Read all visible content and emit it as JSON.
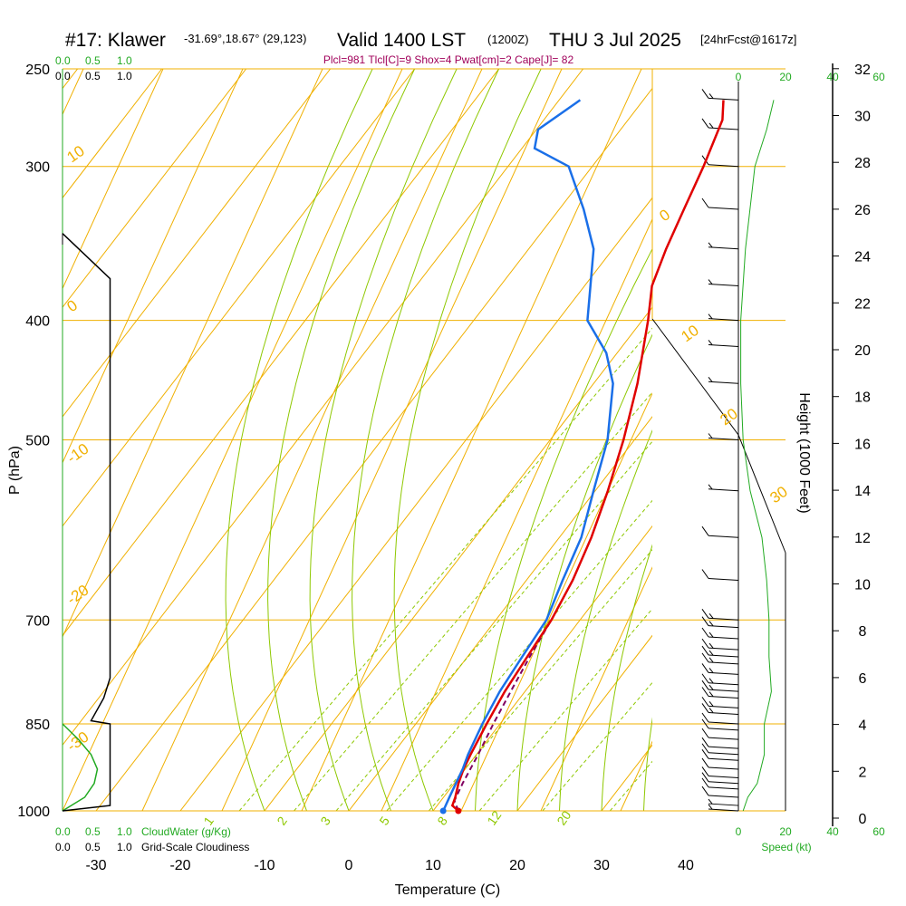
{
  "header": {
    "title_station": "#17: Klawer",
    "title_coords": "-31.69°,18.67° (29,123)",
    "title_valid": "Valid 1400 LST",
    "title_utc": "(1200Z)",
    "title_date": "THU 3 Jul 2025",
    "title_fcst": "[24hrFcst@1617z]",
    "stats_line": "Plcl=981 Tlcl[C]=9 Shox=4 Pwat[cm]=2 Cape[J]= 82"
  },
  "labels": {
    "left_axis": "P (hPa)",
    "right_axis": "Height (1000 Feet)",
    "bottom_axis": "Temperature (C)",
    "cloudwater": "CloudWater (g/Kg)",
    "cloudiness": "Grid-Scale Cloudiness",
    "speed": "Speed (kt)"
  },
  "scale_labels": {
    "top_green": [
      "0.0",
      "0.5",
      "1.0"
    ],
    "top_black": [
      "0.0",
      "0.5",
      "1.0"
    ],
    "bottom_green": [
      "0.0",
      "0.5",
      "1.0"
    ],
    "bottom_black": [
      "0.0",
      "0.5",
      "1.0"
    ],
    "speed_top": [
      "0",
      "20",
      "40",
      "60"
    ],
    "speed_bottom": [
      "0",
      "20",
      "40",
      "60"
    ]
  },
  "colors": {
    "isobar": "#f0b000",
    "isotherm": "#f0b000",
    "dry_adiabat": "#8ec800",
    "mixing_ratio": "#8ec800",
    "temperature": "#e00000",
    "dewpoint": "#1a6fe8",
    "parcel": "#800060",
    "cloudwater": "#22aa22",
    "cloudiness": "#000000",
    "wind_speed": "#22aa22"
  },
  "chart_data": {
    "type": "line",
    "x_axis": {
      "label": "Temperature (C)",
      "ticks": [
        -30,
        -20,
        -10,
        0,
        10,
        20,
        30,
        40
      ],
      "range": [
        -34,
        37
      ]
    },
    "y_axis": {
      "label": "P (hPa)",
      "scale": "log",
      "ticks": [
        250,
        300,
        400,
        500,
        700,
        850,
        1000
      ],
      "range": [
        1000,
        250
      ]
    },
    "height_axis": {
      "label": "Height (1000 Feet)",
      "ticks": [
        0,
        2,
        4,
        6,
        8,
        10,
        12,
        14,
        16,
        18,
        20,
        22,
        24,
        26,
        28,
        30,
        32
      ]
    },
    "isotherm_labels": [
      10,
      0,
      -10,
      -20,
      -30,
      0,
      10,
      20,
      30
    ],
    "mixing_ratio_labels": [
      "1",
      "2",
      "3",
      "5",
      "8",
      "12",
      "20"
    ],
    "series": [
      {
        "name": "Temperature",
        "unit": "C",
        "points": [
          {
            "p": 1000,
            "t": 13.0
          },
          {
            "p": 990,
            "t": 11.8
          },
          {
            "p": 975,
            "t": 11.4
          },
          {
            "p": 950,
            "t": 10.5
          },
          {
            "p": 925,
            "t": 9.8
          },
          {
            "p": 900,
            "t": 9.3
          },
          {
            "p": 850,
            "t": 8.4
          },
          {
            "p": 800,
            "t": 7.6
          },
          {
            "p": 750,
            "t": 7.1
          },
          {
            "p": 700,
            "t": 6.6
          },
          {
            "p": 650,
            "t": 5.5
          },
          {
            "p": 600,
            "t": 3.8
          },
          {
            "p": 550,
            "t": 1.5
          },
          {
            "p": 500,
            "t": -1.3
          },
          {
            "p": 450,
            "t": -4.8
          },
          {
            "p": 400,
            "t": -9.3
          },
          {
            "p": 375,
            "t": -12.0
          },
          {
            "p": 350,
            "t": -13.7
          },
          {
            "p": 325,
            "t": -15.2
          },
          {
            "p": 300,
            "t": -16.8
          },
          {
            "p": 275,
            "t": -18.8
          },
          {
            "p": 265,
            "t": -20.5
          }
        ]
      },
      {
        "name": "Dewpoint",
        "unit": "C",
        "points": [
          {
            "p": 1000,
            "t": 11.2
          },
          {
            "p": 990,
            "t": 11.0
          },
          {
            "p": 975,
            "t": 10.7
          },
          {
            "p": 950,
            "t": 10.2
          },
          {
            "p": 925,
            "t": 9.7
          },
          {
            "p": 900,
            "t": 9.0
          },
          {
            "p": 850,
            "t": 7.9
          },
          {
            "p": 800,
            "t": 7.0
          },
          {
            "p": 750,
            "t": 6.5
          },
          {
            "p": 700,
            "t": 6.0
          },
          {
            "p": 650,
            "t": 4.3
          },
          {
            "p": 600,
            "t": 2.6
          },
          {
            "p": 550,
            "t": -0.2
          },
          {
            "p": 500,
            "t": -3.2
          },
          {
            "p": 450,
            "t": -7.7
          },
          {
            "p": 425,
            "t": -11.3
          },
          {
            "p": 400,
            "t": -16.5
          },
          {
            "p": 375,
            "t": -19.3
          },
          {
            "p": 350,
            "t": -22.3
          },
          {
            "p": 325,
            "t": -27.1
          },
          {
            "p": 300,
            "t": -32.8
          },
          {
            "p": 290,
            "t": -38.5
          },
          {
            "p": 280,
            "t": -39.8
          },
          {
            "p": 265,
            "t": -37.5
          }
        ]
      },
      {
        "name": "Parcel",
        "unit": "C",
        "points": [
          {
            "p": 1000,
            "t": 13.0
          },
          {
            "p": 981,
            "t": 11.6
          },
          {
            "p": 950,
            "t": 11.0
          },
          {
            "p": 900,
            "t": 10.2
          },
          {
            "p": 850,
            "t": 9.2
          },
          {
            "p": 800,
            "t": 8.3
          },
          {
            "p": 750,
            "t": 7.4
          },
          {
            "p": 700,
            "t": 6.6
          }
        ]
      }
    ],
    "cloudwater_profile": [
      {
        "p": 1000,
        "v": 0.0
      },
      {
        "p": 975,
        "v": 0.35
      },
      {
        "p": 950,
        "v": 0.5
      },
      {
        "p": 925,
        "v": 0.55
      },
      {
        "p": 900,
        "v": 0.45
      },
      {
        "p": 875,
        "v": 0.25
      },
      {
        "p": 850,
        "v": 0.0
      }
    ],
    "cloudiness_profile": [
      {
        "p": 1000,
        "v": 0.0
      },
      {
        "p": 990,
        "v": 0.75
      },
      {
        "p": 975,
        "v": 0.75
      },
      {
        "p": 850,
        "v": 0.75
      },
      {
        "p": 845,
        "v": 0.45
      },
      {
        "p": 810,
        "v": 0.65
      },
      {
        "p": 780,
        "v": 0.75
      },
      {
        "p": 370,
        "v": 0.75
      },
      {
        "p": 340,
        "v": 0.0
      }
    ],
    "wind_speed_profile": [
      {
        "p": 1000,
        "kt": 2
      },
      {
        "p": 975,
        "kt": 4
      },
      {
        "p": 950,
        "kt": 8
      },
      {
        "p": 900,
        "kt": 11
      },
      {
        "p": 850,
        "kt": 11
      },
      {
        "p": 800,
        "kt": 14
      },
      {
        "p": 750,
        "kt": 13
      },
      {
        "p": 700,
        "kt": 13
      },
      {
        "p": 650,
        "kt": 12
      },
      {
        "p": 600,
        "kt": 10
      },
      {
        "p": 550,
        "kt": 5
      },
      {
        "p": 500,
        "kt": 2
      },
      {
        "p": 450,
        "kt": 1
      },
      {
        "p": 400,
        "kt": 1
      },
      {
        "p": 350,
        "kt": 3
      },
      {
        "p": 300,
        "kt": 7
      },
      {
        "p": 280,
        "kt": 12
      },
      {
        "p": 265,
        "kt": 15
      }
    ],
    "wind_barbs": [
      {
        "p": 1000,
        "kt": 5
      },
      {
        "p": 990,
        "kt": 5
      },
      {
        "p": 975,
        "kt": 10
      },
      {
        "p": 960,
        "kt": 10
      },
      {
        "p": 950,
        "kt": 10
      },
      {
        "p": 940,
        "kt": 10
      },
      {
        "p": 925,
        "kt": 10
      },
      {
        "p": 910,
        "kt": 10
      },
      {
        "p": 900,
        "kt": 10
      },
      {
        "p": 890,
        "kt": 10
      },
      {
        "p": 875,
        "kt": 10
      },
      {
        "p": 860,
        "kt": 10
      },
      {
        "p": 850,
        "kt": 10
      },
      {
        "p": 835,
        "kt": 15
      },
      {
        "p": 825,
        "kt": 15
      },
      {
        "p": 810,
        "kt": 15
      },
      {
        "p": 800,
        "kt": 15
      },
      {
        "p": 790,
        "kt": 15
      },
      {
        "p": 775,
        "kt": 15
      },
      {
        "p": 760,
        "kt": 15
      },
      {
        "p": 750,
        "kt": 15
      },
      {
        "p": 740,
        "kt": 15
      },
      {
        "p": 725,
        "kt": 15
      },
      {
        "p": 710,
        "kt": 15
      },
      {
        "p": 700,
        "kt": 15
      },
      {
        "p": 650,
        "kt": 10
      },
      {
        "p": 600,
        "kt": 10
      },
      {
        "p": 550,
        "kt": 5
      },
      {
        "p": 500,
        "kt": 5
      },
      {
        "p": 450,
        "kt": 5
      },
      {
        "p": 420,
        "kt": 5
      },
      {
        "p": 400,
        "kt": 5
      },
      {
        "p": 375,
        "kt": 5
      },
      {
        "p": 350,
        "kt": 5
      },
      {
        "p": 325,
        "kt": 10
      },
      {
        "p": 300,
        "kt": 10
      },
      {
        "p": 280,
        "kt": 15
      },
      {
        "p": 265,
        "kt": 15
      }
    ]
  }
}
